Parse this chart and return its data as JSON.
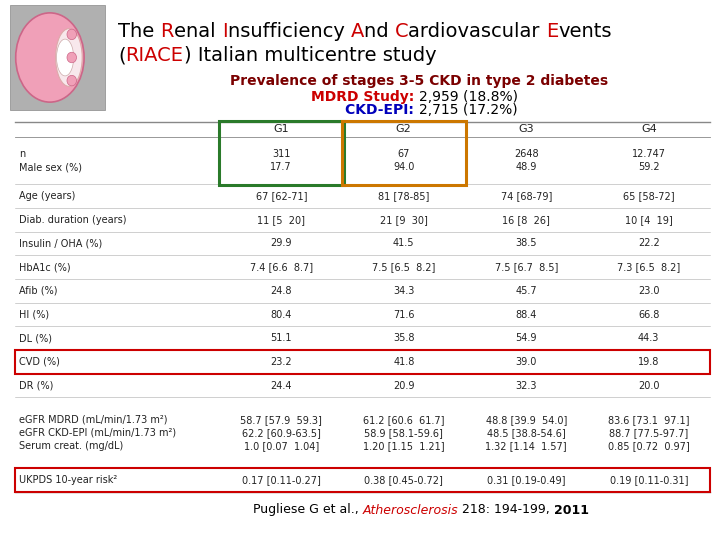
{
  "col_headers": [
    "G1",
    "G2",
    "G3",
    "G4"
  ],
  "rows": [
    {
      "label": "n\nMale sex (%)",
      "values": [
        "311\n17.7",
        "67\n94.0",
        "2648\n48.9",
        "12.747\n59.2"
      ],
      "multiline": true
    },
    {
      "label": "Age (years)",
      "values": [
        "67 [62-71]",
        "81 [78-85]",
        "74 [68-79]",
        "65 [58-72]"
      ]
    },
    {
      "label": "Diab. duration (years)",
      "values": [
        "11 [5  20]",
        "21 [9  30]",
        "16 [8  26]",
        "10 [4  19]"
      ]
    },
    {
      "label": "Insulin / OHA (%)",
      "values": [
        "29.9",
        "41.5",
        "38.5",
        "22.2"
      ]
    },
    {
      "label": "HbA1c (%)",
      "values": [
        "7.4 [6.6  8.7]",
        "7.5 [6.5  8.2]",
        "7.5 [6.7  8.5]",
        "7.3 [6.5  8.2]"
      ]
    },
    {
      "label": "Afib (%)",
      "values": [
        "24.8",
        "34.3",
        "45.7",
        "23.0"
      ]
    },
    {
      "label": "HI (%)",
      "values": [
        "80.4",
        "71.6",
        "88.4",
        "66.8"
      ]
    },
    {
      "label": "DL (%)",
      "values": [
        "51.1",
        "35.8",
        "54.9",
        "44.3"
      ]
    },
    {
      "label": "CVD (%)",
      "values": [
        "23.2",
        "41.8",
        "39.0",
        "19.8"
      ],
      "highlight": "red"
    },
    {
      "label": "DR (%)",
      "values": [
        "24.4",
        "20.9",
        "32.3",
        "20.0"
      ]
    },
    {
      "label": "eGFR MDRD (mL/min/1.73 m²)\neGFR CKD-EPI (mL/min/1.73 m²)\nSerum creat. (mg/dL)",
      "values": [
        "58.7 [57.9  59.3]\n62.2 [60.9-63.5]\n1.0 [0.07  1.04]",
        "61.2 [60.6  61.7]\n58.9 [58.1-59.6]\n1.20 [1.15  1.21]",
        "48.8 [39.9  54.0]\n48.5 [38.8-54.6]\n1.32 [1.14  1.57]",
        "83.6 [73.1  97.1]\n88.7 [77.5-97.7]\n0.85 [0.72  0.97]"
      ],
      "multiline3": true
    },
    {
      "label": "UKPDS 10-year risk²",
      "values": [
        "0.17 [0.11-0.27]",
        "0.38 [0.45-0.72]",
        "0.31 [0.19-0.49]",
        "0.19 [0.11-0.31]"
      ],
      "highlight": "red"
    }
  ],
  "bg_color": "#ffffff",
  "red_color": "#cc0000",
  "dark_red": "#7b0000",
  "orange_color": "#cc7700",
  "green_color": "#2a7a2a",
  "blue_color": "#0000bb",
  "table_line_color": "#888888",
  "text_color": "#222222",
  "title_fontsize": 14,
  "subtitle_fontsize": 10,
  "table_fontsize": 7,
  "header_fontsize": 8
}
